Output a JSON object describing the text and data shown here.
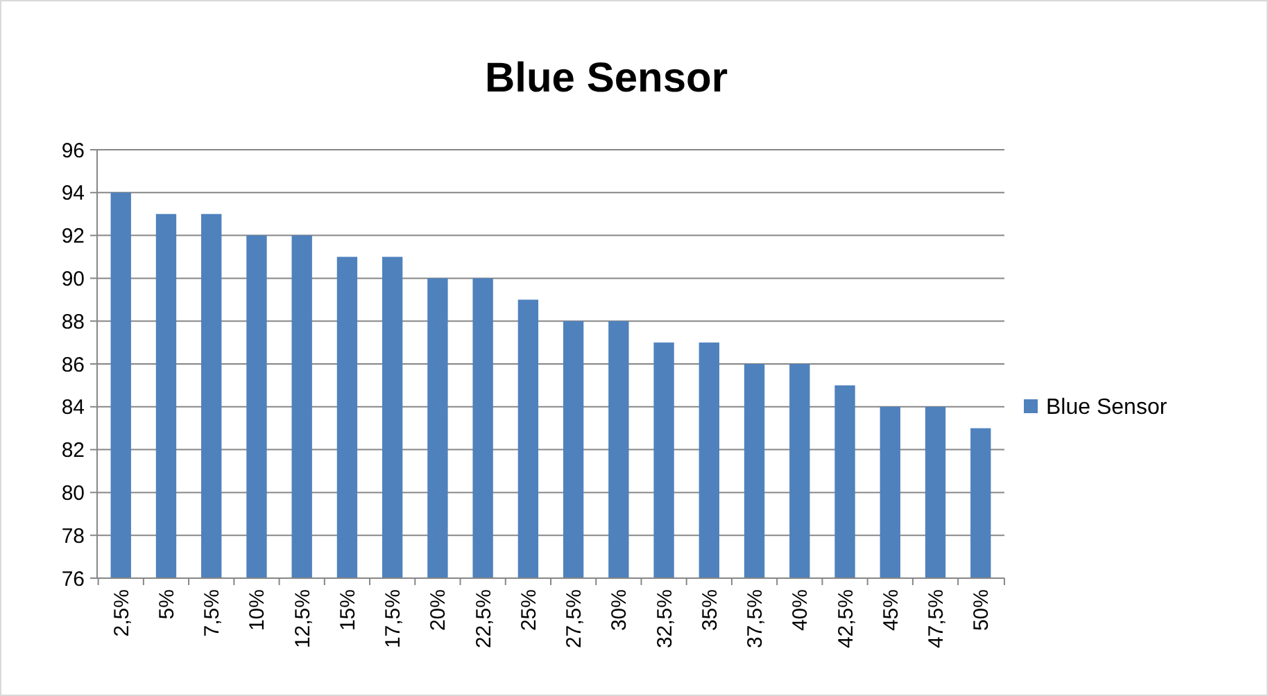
{
  "chart_data": {
    "type": "bar",
    "title": "Blue Sensor",
    "categories": [
      "2,5%",
      "5%",
      "7,5%",
      "10%",
      "12,5%",
      "15%",
      "17,5%",
      "20%",
      "22,5%",
      "25%",
      "27,5%",
      "30%",
      "32,5%",
      "35%",
      "37,5%",
      "40%",
      "42,5%",
      "45%",
      "47,5%",
      "50%"
    ],
    "series": [
      {
        "name": "Blue Sensor",
        "color": "#4f81bd",
        "values": [
          94,
          93,
          93,
          92,
          92,
          91,
          91,
          90,
          90,
          89,
          88,
          88,
          87,
          87,
          86,
          86,
          85,
          84,
          84,
          83
        ]
      }
    ],
    "ylim": [
      76,
      96
    ],
    "yticks": [
      76,
      78,
      80,
      82,
      84,
      86,
      88,
      90,
      92,
      94,
      96
    ],
    "grid": "y",
    "legend": "right"
  }
}
